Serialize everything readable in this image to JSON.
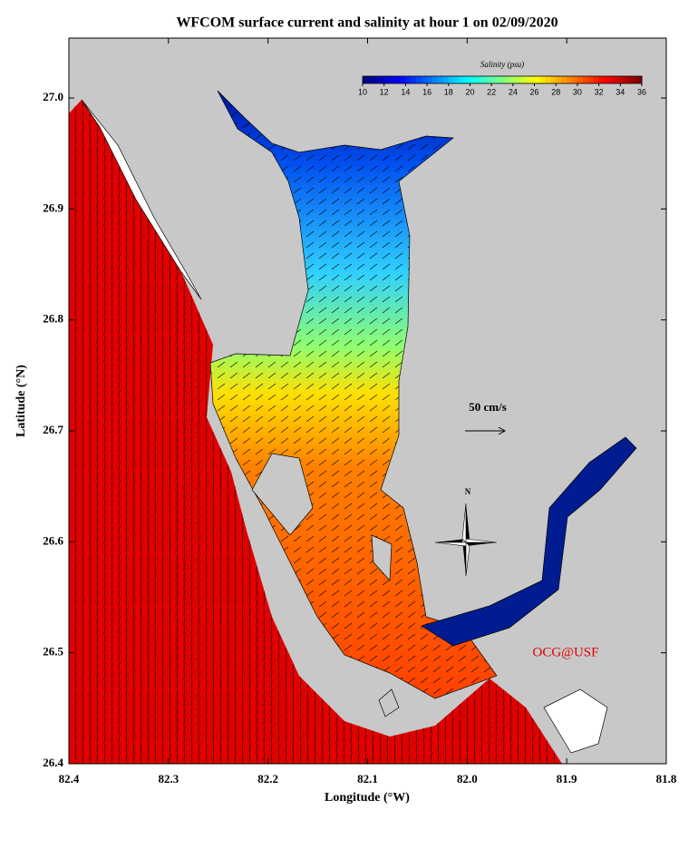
{
  "map": {
    "title": "WFCOM surface current and salinity at hour 1 on 02/09/2020",
    "xlabel": "Longitude (°W)",
    "ylabel": "Latitude (°N)",
    "xlim": [
      82.4,
      81.8
    ],
    "ylim": [
      26.4,
      27.054
    ],
    "xticks": [
      82.4,
      82.3,
      82.2,
      82.1,
      {
        "value": 82,
        "label": "82.0"
      },
      81.9,
      81.8
    ],
    "yticks": [
      26.4,
      26.5,
      26.6,
      26.7,
      26.8,
      26.9,
      {
        "value": 27,
        "label": "27.0"
      }
    ],
    "colorbar": {
      "label": "Salinity (psu)",
      "range": [
        10,
        36
      ],
      "ticks": [
        10,
        12,
        14,
        16,
        18,
        20,
        22,
        24,
        26,
        28,
        30,
        32,
        34,
        36
      ],
      "colormap": "jet"
    },
    "scale_label": "50 cm/s",
    "compass_label": "N",
    "credit": "OCG@USF"
  }
}
